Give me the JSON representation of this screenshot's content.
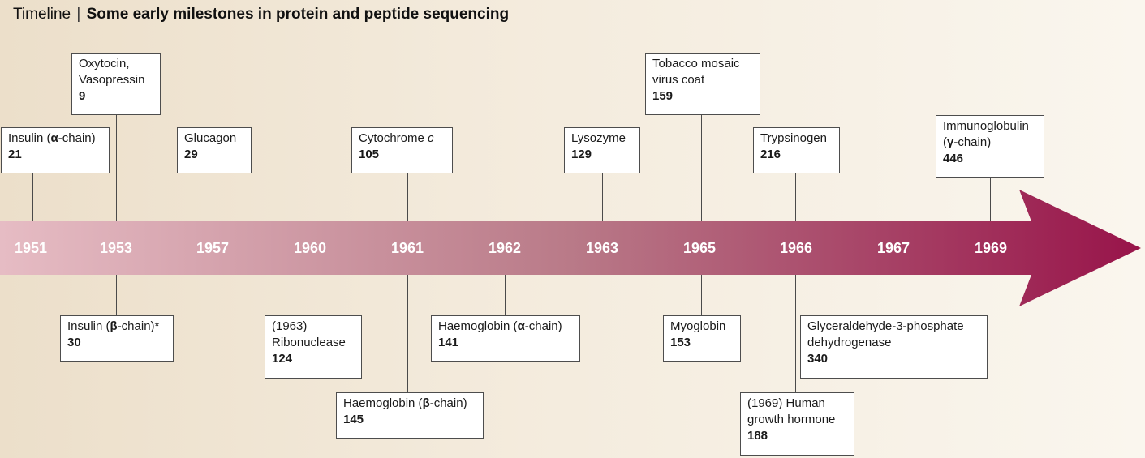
{
  "header": {
    "kicker": "Timeline",
    "separator": "|",
    "title": "Some early milestones in protein and peptide sequencing"
  },
  "years": [
    "1951",
    "1953",
    "1957",
    "1960",
    "1961",
    "1962",
    "1963",
    "1965",
    "1966",
    "1967",
    "1969"
  ],
  "milestones_above": [
    {
      "name": "Insulin (α-chain)",
      "count": "21"
    },
    {
      "name": "Oxytocin,\nVasopressin",
      "count": "9"
    },
    {
      "name": "Glucagon",
      "count": "29"
    },
    {
      "name": "Cytochrome c",
      "count": "105"
    },
    {
      "name": "Lysozyme",
      "count": "129"
    },
    {
      "name": "Tobacco mosaic\nvirus coat",
      "count": "159"
    },
    {
      "name": "Trypsinogen",
      "count": "216"
    },
    {
      "name": "Immunoglobulin\n(γ-chain)",
      "count": "446"
    }
  ],
  "milestones_below": [
    {
      "name": "Insulin (β-chain)*",
      "count": "30"
    },
    {
      "name": "(1963)\nRibonuclease",
      "count": "124"
    },
    {
      "name": "Haemoglobin (β-chain)",
      "count": "145"
    },
    {
      "name": "Haemoglobin (α-chain)",
      "count": "141"
    },
    {
      "name": "Myoglobin",
      "count": "153"
    },
    {
      "name": "(1969) Human\ngrowth hormone",
      "count": "188"
    },
    {
      "name": "Glyceraldehyde-3-phosphate\ndehydrogenase",
      "count": "340"
    }
  ],
  "colors": {
    "arrow_start": "#e6bcc4",
    "arrow_mid": "#b97a88",
    "arrow_end": "#98144a"
  }
}
